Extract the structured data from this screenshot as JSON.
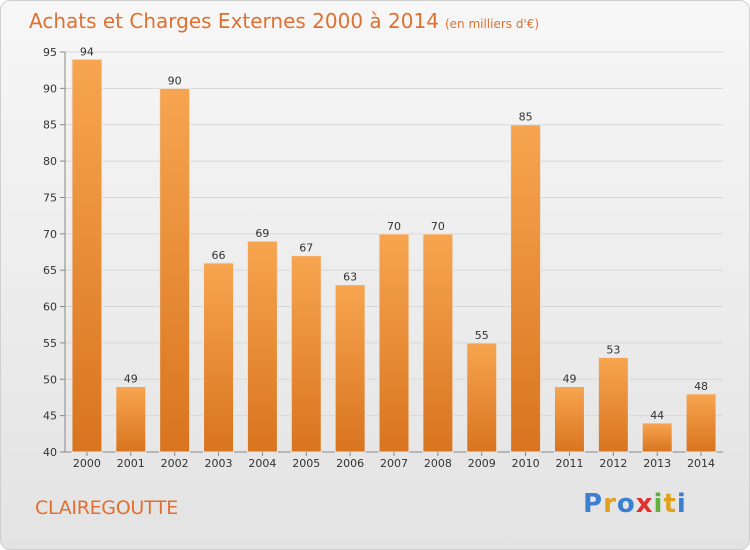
{
  "header": {
    "title": "Achats et Charges Externes 2000 à 2014",
    "unit": "(en milliers d'€)"
  },
  "footer": {
    "city": "CLAIREGOUTTE",
    "logo": "Proxiti",
    "logo_colors": [
      "#3a7fd0",
      "#e0a020",
      "#3a7fd0",
      "#e03030",
      "#60b040",
      "#e0a020",
      "#3a7fd0"
    ]
  },
  "colors": {
    "bar_top": "#f7a550",
    "bar_bottom": "#d9741f",
    "grid": "#d7d7d7",
    "axis": "#888888",
    "accent": "#e07030"
  },
  "chart_data": {
    "type": "bar",
    "title": "Achats et Charges Externes 2000 à 2014",
    "subtitle": "(en milliers d'€)",
    "xlabel": "",
    "ylabel": "",
    "categories": [
      "2000",
      "2001",
      "2002",
      "2003",
      "2004",
      "2005",
      "2006",
      "2007",
      "2008",
      "2009",
      "2010",
      "2011",
      "2012",
      "2013",
      "2014"
    ],
    "values": [
      94,
      49,
      90,
      66,
      69,
      67,
      63,
      70,
      70,
      55,
      85,
      49,
      53,
      44,
      48
    ],
    "ylim": [
      40,
      95
    ],
    "yticks": [
      40,
      45,
      50,
      55,
      60,
      65,
      70,
      75,
      80,
      85,
      90,
      95
    ],
    "grid": true,
    "legend": "none"
  }
}
